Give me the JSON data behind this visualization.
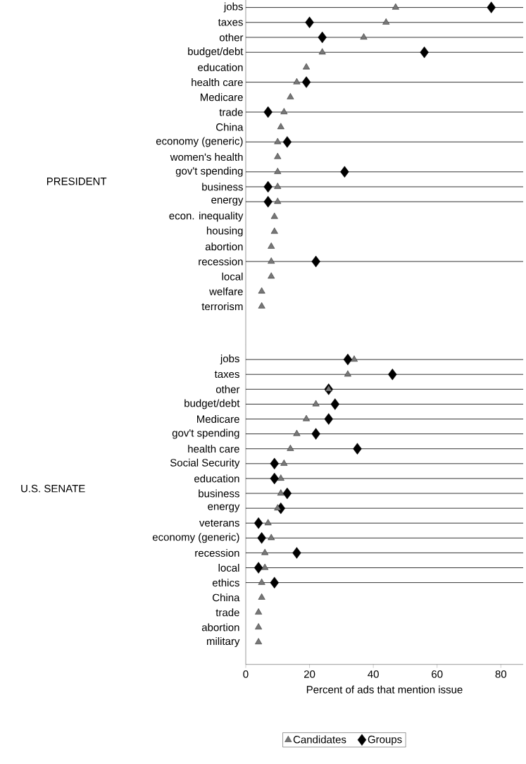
{
  "chart_data": [
    {
      "type": "scatter",
      "orientation": "horizontal",
      "ylabel": "PRESIDENT",
      "xlim": [
        0,
        87
      ],
      "tick_labels": "y",
      "categories": [
        "jobs",
        "taxes",
        "other",
        "budget/debt",
        "education",
        "health care",
        "Medicare",
        "trade",
        "China",
        "economy (generic)",
        "women's health",
        "gov't spending",
        "business",
        "energy",
        "econ. inequality",
        "housing",
        "abortion",
        "recession",
        "local",
        "welfare",
        "terrorism"
      ],
      "series": [
        {
          "color": "#777777",
          "marker": "triangle",
          "values": [
            47,
            44,
            37,
            24,
            19,
            16,
            14,
            12,
            11,
            10,
            10,
            10,
            10,
            10,
            9,
            9,
            8,
            8,
            8,
            5,
            5
          ]
        },
        {
          "color": "#000000",
          "marker": "diamond",
          "values": [
            77,
            20,
            24,
            56,
            null,
            19,
            null,
            7,
            null,
            13,
            null,
            31,
            7,
            7,
            null,
            null,
            null,
            22,
            null,
            null,
            null
          ]
        }
      ]
    },
    {
      "type": "scatter",
      "orientation": "horizontal",
      "ylabel": "U.S. SENATE",
      "xlabel": "Percent of ads that mention issue",
      "xlim": [
        0,
        87
      ],
      "xticks": [
        0,
        20,
        40,
        60,
        80
      ],
      "legend": "bottom",
      "categories": [
        "jobs",
        "taxes",
        "other",
        "budget/debt",
        "Medicare",
        "gov't spending",
        "health care",
        "Social Security",
        "education",
        "business",
        "energy",
        "veterans",
        "economy (generic)",
        "recession",
        "local",
        "ethics",
        "China",
        "trade",
        "abortion",
        "military"
      ],
      "series": [
        {
          "name": "Candidates",
          "color": "#777777",
          "marker": "triangle",
          "values": [
            34,
            32,
            26,
            22,
            19,
            16,
            14,
            12,
            11,
            11,
            10,
            7,
            8,
            6,
            6,
            5,
            5,
            4,
            4,
            4
          ]
        },
        {
          "name": "Groups",
          "color": "#000000",
          "marker": "diamond",
          "values": [
            32,
            46,
            26,
            28,
            26,
            22,
            35,
            9,
            9,
            13,
            11,
            4,
            5,
            16,
            4,
            9,
            null,
            null,
            null,
            null
          ]
        }
      ]
    }
  ]
}
